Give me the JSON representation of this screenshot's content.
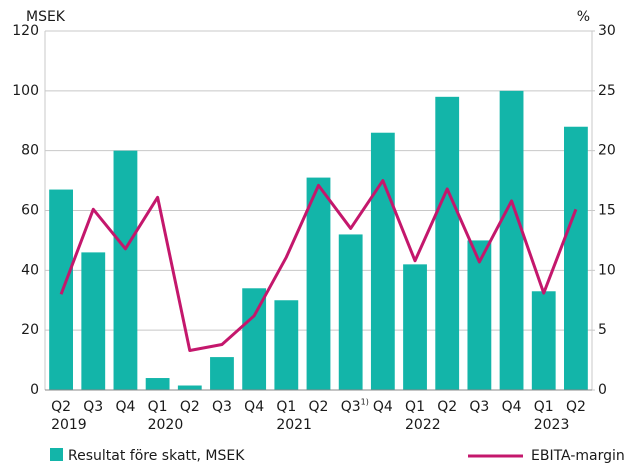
{
  "chart_data": {
    "type": "bar-line",
    "y_label": "MSEK",
    "y2_label": "%",
    "categories": [
      "Q2",
      "Q3",
      "Q4",
      "Q1",
      "Q2",
      "Q3",
      "Q4",
      "Q1",
      "Q2",
      "Q3",
      "Q4",
      "Q1",
      "Q2",
      "Q3",
      "Q4",
      "Q1",
      "Q2"
    ],
    "year_labels": [
      "2019",
      null,
      null,
      "2020",
      null,
      null,
      null,
      "2021",
      null,
      null,
      null,
      "2022",
      null,
      null,
      null,
      "2023",
      null
    ],
    "category_superscripts": [
      null,
      null,
      null,
      null,
      null,
      null,
      null,
      null,
      null,
      "1)",
      null,
      null,
      null,
      null,
      null,
      null,
      null
    ],
    "series": [
      {
        "name": "Resultat före skatt, MSEK",
        "type": "bar",
        "color": "#13b5a9",
        "values": [
          67,
          46,
          80,
          4,
          1.5,
          11,
          34,
          30,
          71,
          52,
          86,
          42,
          98,
          50,
          100,
          33,
          88
        ]
      },
      {
        "name": "EBITA-marginal, %",
        "type": "line",
        "axis": "y2",
        "color": "#c4176c",
        "values": [
          8,
          15.1,
          11.8,
          16.1,
          3.3,
          3.8,
          6.2,
          11.1,
          17.1,
          13.5,
          17.5,
          10.8,
          16.8,
          10.7,
          15.8,
          8.1,
          15.1
        ]
      }
    ],
    "ylim": [
      0,
      120
    ],
    "yticks": [
      0,
      20,
      40,
      60,
      80,
      100,
      120
    ],
    "y2lim": [
      0,
      30
    ],
    "y2ticks": [
      0,
      5,
      10,
      15,
      20,
      25,
      30
    ],
    "grid": true
  }
}
